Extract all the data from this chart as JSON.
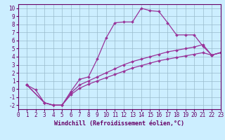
{
  "xlabel": "Windchill (Refroidissement éolien,°C)",
  "bg_color": "#cceeff",
  "grid_color": "#99bbcc",
  "line_color": "#993399",
  "xlim": [
    0,
    23
  ],
  "ylim": [
    -2.5,
    10.5
  ],
  "xticks": [
    0,
    1,
    2,
    3,
    4,
    5,
    6,
    7,
    8,
    9,
    10,
    11,
    12,
    13,
    14,
    15,
    16,
    17,
    18,
    19,
    20,
    21,
    22,
    23
  ],
  "yticks": [
    -2,
    -1,
    0,
    1,
    2,
    3,
    4,
    5,
    6,
    7,
    8,
    9,
    10
  ],
  "line1_x": [
    1,
    2,
    3,
    4,
    5,
    6,
    7,
    8,
    9,
    10,
    11,
    12,
    13,
    14,
    15,
    16,
    17,
    18,
    19,
    20,
    21,
    22,
    23
  ],
  "line1_y": [
    0.5,
    -0.1,
    -1.7,
    -2.0,
    -2.0,
    -0.3,
    1.2,
    1.5,
    3.7,
    6.3,
    8.2,
    8.3,
    8.3,
    10.0,
    9.7,
    9.6,
    8.2,
    6.7,
    6.7,
    6.7,
    5.3,
    4.2,
    4.5
  ],
  "line2_x": [
    1,
    3,
    4,
    5,
    6,
    7,
    8,
    9,
    10,
    11,
    12,
    13,
    14,
    15,
    16,
    17,
    18,
    19,
    20,
    21,
    22,
    23
  ],
  "line2_y": [
    0.5,
    -1.7,
    -2.0,
    -2.0,
    -0.5,
    0.5,
    1.0,
    1.5,
    2.0,
    2.5,
    3.0,
    3.4,
    3.7,
    4.0,
    4.3,
    4.6,
    4.8,
    5.0,
    5.2,
    5.5,
    4.2,
    4.5
  ],
  "line3_x": [
    1,
    3,
    4,
    5,
    6,
    7,
    8,
    9,
    10,
    11,
    12,
    13,
    14,
    15,
    16,
    17,
    18,
    19,
    20,
    21,
    22,
    23
  ],
  "line3_y": [
    0.5,
    -1.7,
    -2.0,
    -2.0,
    -0.7,
    0.1,
    0.6,
    1.0,
    1.4,
    1.8,
    2.2,
    2.6,
    2.9,
    3.2,
    3.5,
    3.7,
    3.9,
    4.1,
    4.3,
    4.5,
    4.2,
    4.5
  ],
  "marker": "D",
  "marker_size": 2,
  "linewidth": 0.9,
  "tick_fontsize": 5.5,
  "xlabel_fontsize": 6.0,
  "tick_color": "#660066",
  "spine_color": "#660066"
}
